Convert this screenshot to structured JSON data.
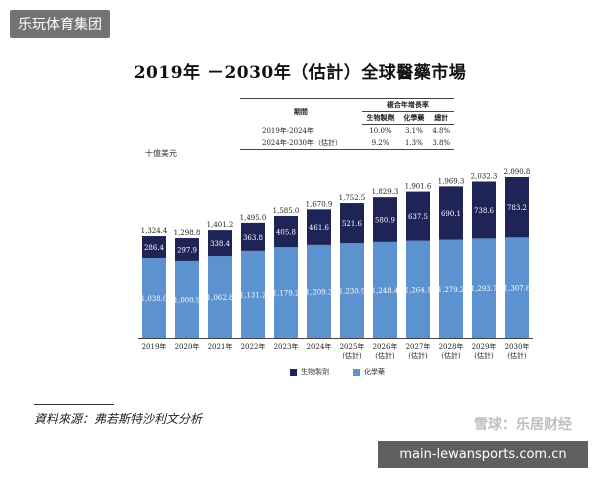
{
  "badge": "乐玩体育集团",
  "watermark": "雪球：乐居财经",
  "url": "main-lewansports.com.cn",
  "source": "資料來源：弗若斯特沙利文分析",
  "cagr_table": {
    "period_header": "期間",
    "group_header": "複合年增長率",
    "columns": [
      "生物製劑",
      "化學藥",
      "總計"
    ],
    "rows": [
      {
        "period": "2019年-2024年",
        "values": [
          "10.0%",
          "3.1%",
          "4.8%"
        ]
      },
      {
        "period": "2024年-2030年（估計）",
        "values": [
          "9.2%",
          "1.3%",
          "3.8%"
        ]
      }
    ]
  },
  "chart_data": {
    "type": "bar",
    "stacked": true,
    "title": "2019年 －2030年（估計）全球醫藥市場",
    "unit_label": "十億美元",
    "categories": [
      [
        "2019年"
      ],
      [
        "2020年"
      ],
      [
        "2021年"
      ],
      [
        "2022年"
      ],
      [
        "2023年"
      ],
      [
        "2024年"
      ],
      [
        "2025年",
        "(估計)"
      ],
      [
        "2026年",
        "(估計)"
      ],
      [
        "2027年",
        "(估計)"
      ],
      [
        "2028年",
        "(估計)"
      ],
      [
        "2029年",
        "(估計)"
      ],
      [
        "2030年",
        "(估計)"
      ]
    ],
    "series": [
      {
        "name": "化學藥",
        "color": "#5b92cf",
        "values": [
          1038.0,
          1000.9,
          1062.8,
          1131.2,
          1179.2,
          1209.3,
          1230.9,
          1248.4,
          1264.1,
          1279.2,
          1293.7,
          1307.6
        ],
        "labels": [
          "1,038.0",
          "1,000.9",
          "1,062.8",
          "1,131.2",
          "1,179.2",
          "1,209.3",
          "1,230.9",
          "1,248.4",
          "1,264.1",
          "1,279.2",
          "1,293.7",
          "1,307.6"
        ]
      },
      {
        "name": "生物製劑",
        "color": "#1f2456",
        "values": [
          286.4,
          297.9,
          338.4,
          363.8,
          405.8,
          461.6,
          521.6,
          580.9,
          637.5,
          690.1,
          738.6,
          783.2
        ],
        "labels": [
          "286.4",
          "297.9",
          "338.4",
          "363.8",
          "405.8",
          "461.6",
          "521.6",
          "580.9",
          "637.5",
          "690.1",
          "738.6",
          "783.2"
        ]
      }
    ],
    "totals": [
      1324.4,
      1298.8,
      1401.2,
      1495.0,
      1585.0,
      1670.9,
      1752.5,
      1829.3,
      1901.6,
      1969.3,
      2032.3,
      2090.8
    ],
    "total_labels": [
      "1,324.4",
      "1,298.8",
      "1,401.2",
      "1,495.0",
      "1,585.0",
      "1,670.9",
      "1,752.5",
      "1,829.3",
      "1,901.6",
      "1,969.3",
      "2,032.3",
      "2,090.8"
    ],
    "ylim": [
      0,
      2100
    ],
    "grid": false,
    "legend_position": "bottom"
  }
}
